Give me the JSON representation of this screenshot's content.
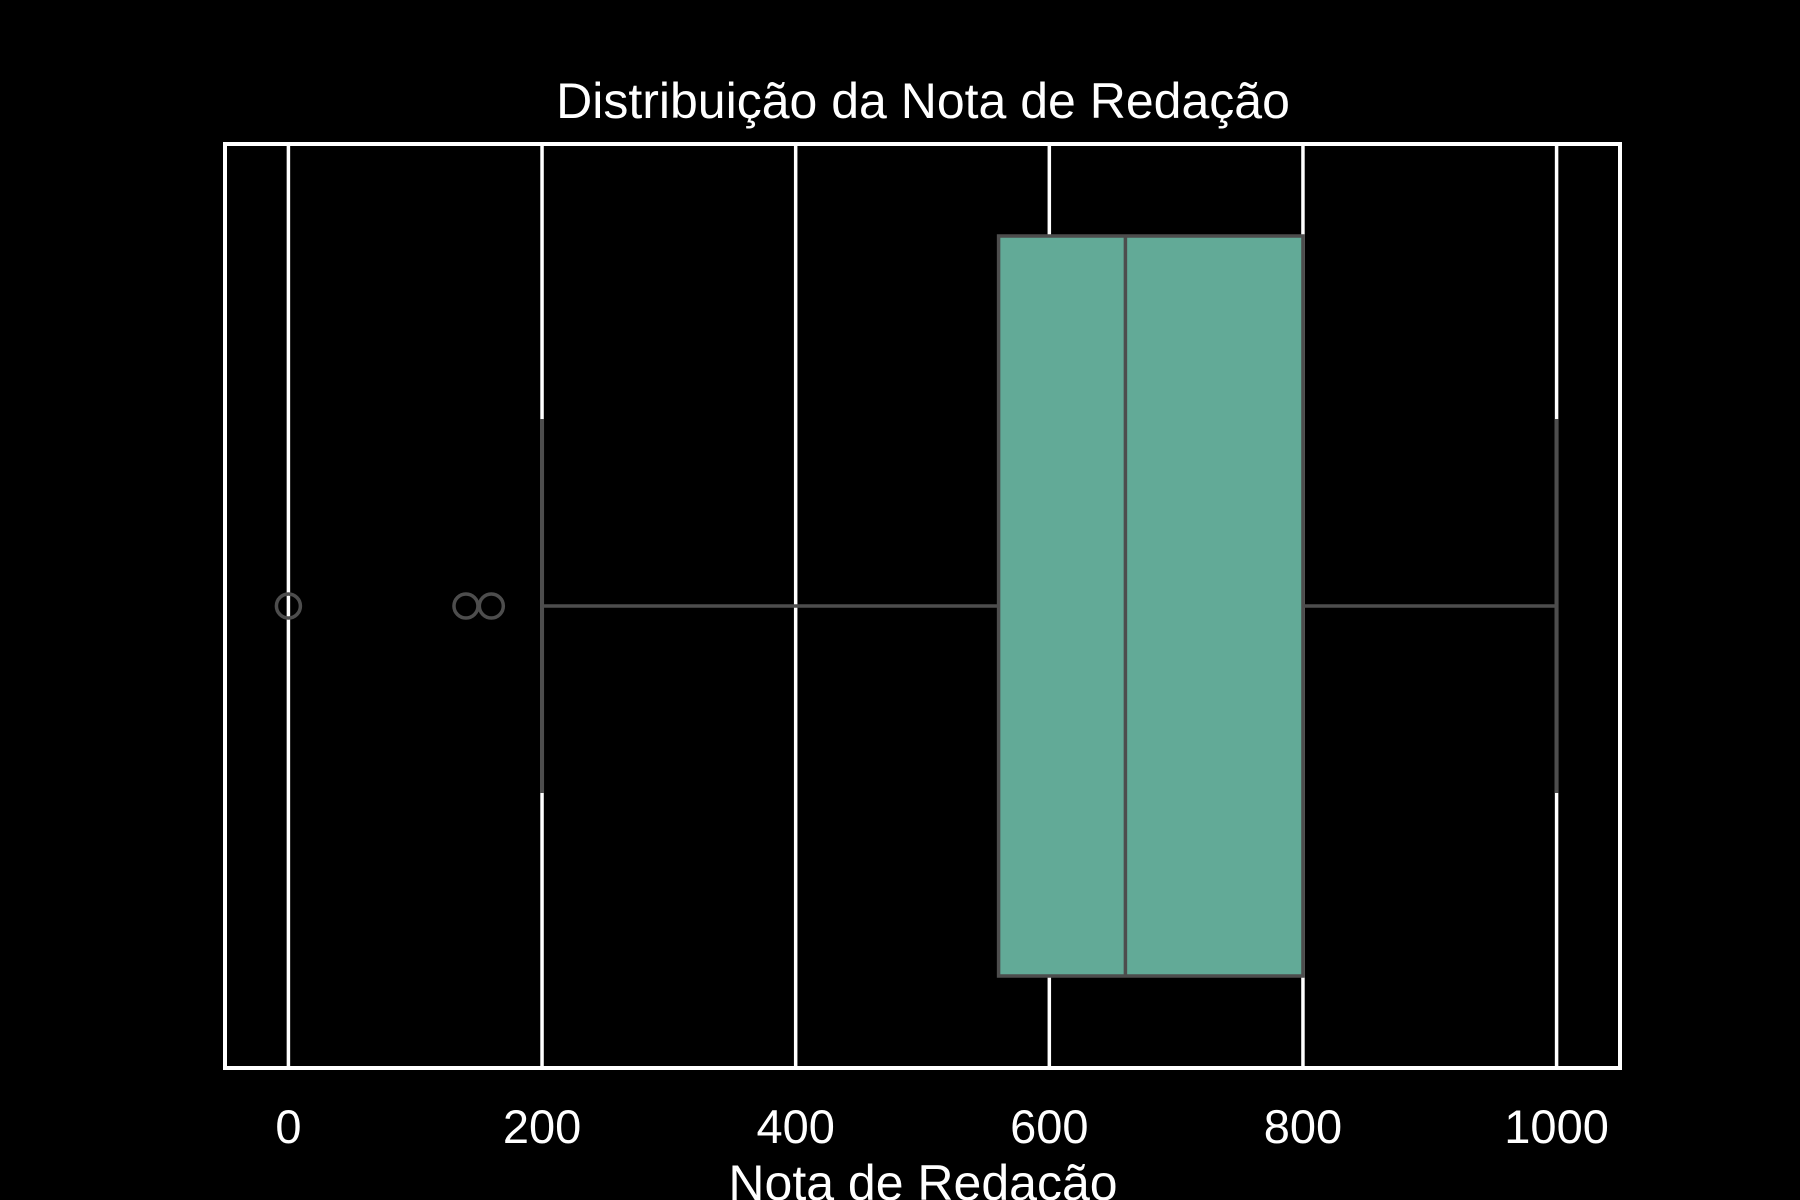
{
  "chart_data": {
    "type": "boxplot",
    "orientation": "horizontal",
    "title": "Distribuição da Nota de Redação",
    "xlabel": "Nota de Redação",
    "ylabel": "",
    "xlim": [
      -50,
      1050
    ],
    "xticks": [
      0,
      200,
      400,
      600,
      800,
      1000
    ],
    "xtick_labels": [
      "0",
      "200",
      "400",
      "600",
      "800",
      "1000"
    ],
    "grid": "vertical",
    "box": {
      "whisker_low": 200,
      "q1": 560,
      "median": 660,
      "q3": 800,
      "whisker_high": 1000
    },
    "outliers": [
      0,
      140,
      160
    ],
    "colors": {
      "background": "#000000",
      "box_fill": "#62aa97",
      "box_edge": "#4d4d4d",
      "grid": "#ffffff",
      "text": "#ffffff"
    }
  }
}
